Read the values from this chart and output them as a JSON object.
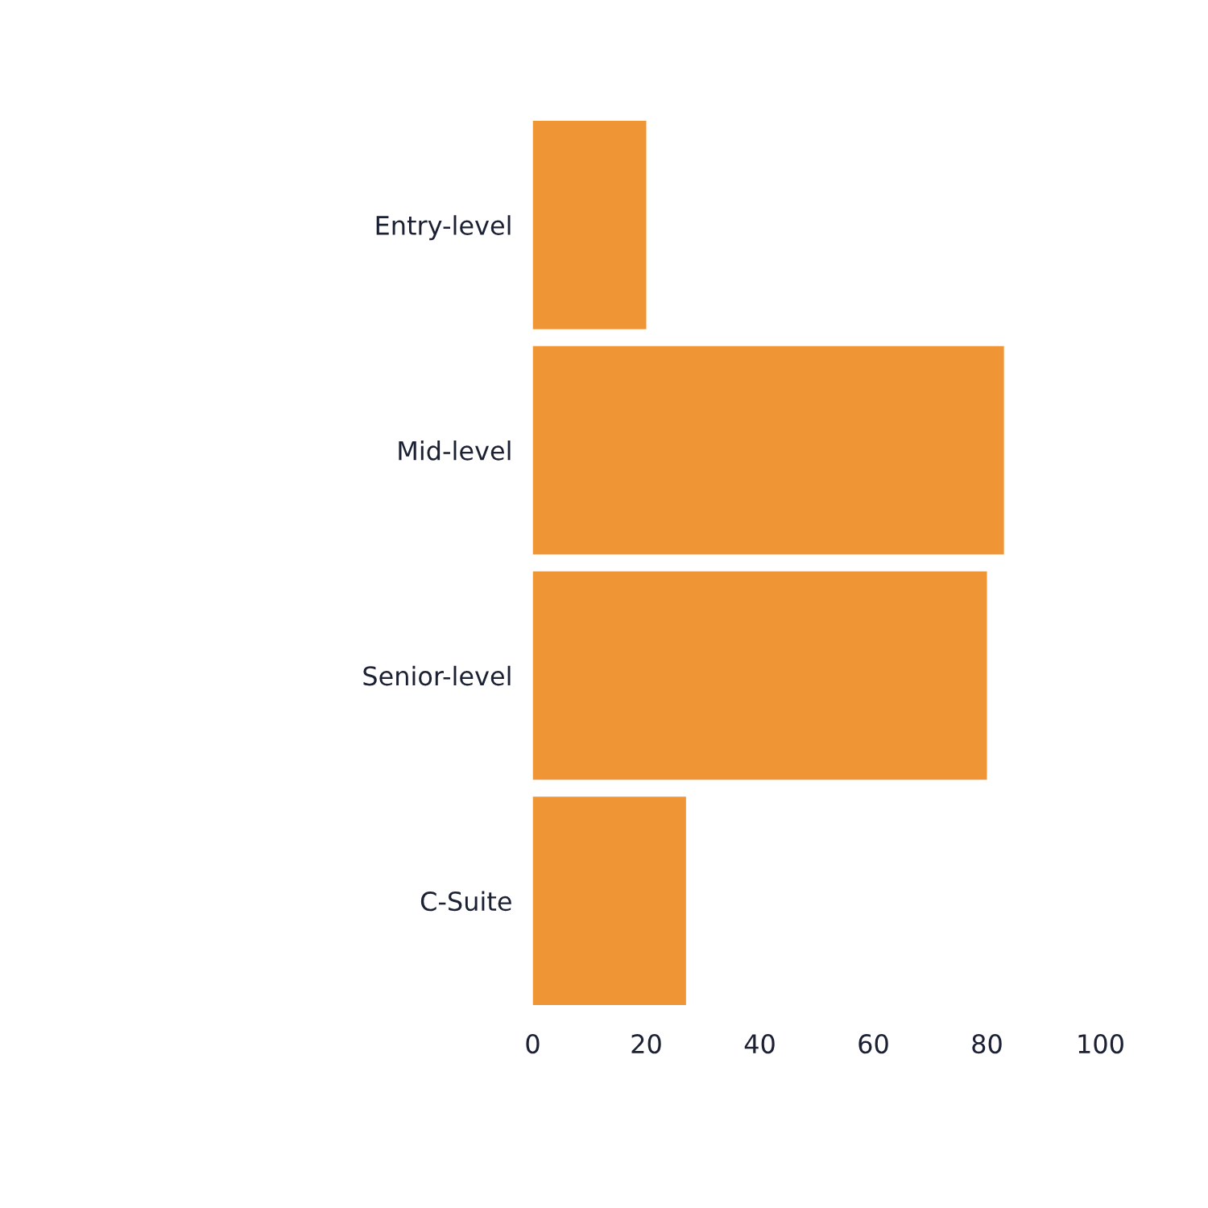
{
  "chart_data": {
    "type": "bar",
    "orientation": "horizontal",
    "categories": [
      "Entry-level",
      "Mid-level",
      "Senior-level",
      "C-Suite"
    ],
    "values": [
      20,
      83,
      80,
      27
    ],
    "color": "#f09536",
    "xlim": [
      0,
      100
    ],
    "xticks": [
      0,
      20,
      40,
      60,
      80,
      100
    ],
    "grid": false,
    "legend": false
  }
}
